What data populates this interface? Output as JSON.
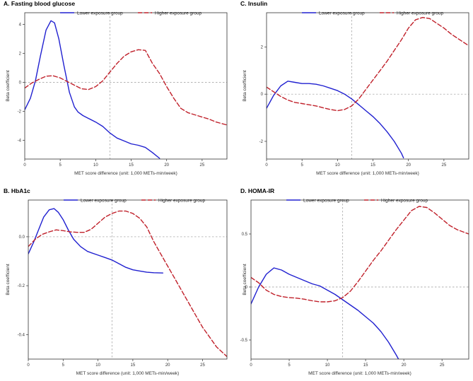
{
  "figure": {
    "background": "#ffffff"
  },
  "colors": {
    "lower": "#2020d0",
    "higher": "#c0202a",
    "reference": "#999999",
    "frame": "#333333"
  },
  "chart_data": [
    {
      "type": "line",
      "title": "A. Fasting blood glucose",
      "xlabel": "MET score difference (unit: 1,000 METs-min/week)",
      "ylabel": "Beta coefficient",
      "xlim": [
        0,
        28.5
      ],
      "ylim": [
        -5.3,
        4.8
      ],
      "xticks": [
        0,
        5,
        10,
        15,
        20,
        25
      ],
      "yticks": [
        -4,
        -2,
        0,
        2,
        4
      ],
      "ref_x": 12,
      "ref_y": 0,
      "legend": "top",
      "series": [
        {
          "name": "Lower exposure group",
          "style": "solid",
          "x": [
            0,
            0.8,
            1.5,
            2.2,
            3,
            3.7,
            4.2,
            4.8,
            5.5,
            6.3,
            7,
            7.5,
            8.2,
            9,
            10,
            11,
            12,
            13,
            14,
            15,
            16,
            17,
            18,
            19
          ],
          "y": [
            -1.9,
            -1.1,
            0.1,
            1.8,
            3.6,
            4.25,
            4.1,
            3.0,
            1.2,
            -0.7,
            -1.7,
            -2.05,
            -2.3,
            -2.5,
            -2.75,
            -3.05,
            -3.5,
            -3.85,
            -4.05,
            -4.25,
            -4.35,
            -4.5,
            -4.85,
            -5.25
          ]
        },
        {
          "name": "Higher exposure group",
          "style": "dashed",
          "x": [
            0,
            1,
            2,
            3,
            4,
            5,
            6,
            7,
            8,
            9,
            10,
            11,
            12,
            13,
            14,
            15,
            16,
            17,
            18,
            19,
            20,
            21,
            22,
            23,
            24,
            25,
            26,
            27,
            28.5
          ],
          "y": [
            -0.4,
            -0.05,
            0.2,
            0.42,
            0.45,
            0.3,
            0.05,
            -0.2,
            -0.45,
            -0.5,
            -0.3,
            0.1,
            0.7,
            1.3,
            1.8,
            2.1,
            2.25,
            2.2,
            1.3,
            0.6,
            -0.3,
            -1.1,
            -1.8,
            -2.1,
            -2.25,
            -2.4,
            -2.55,
            -2.75,
            -2.95
          ]
        }
      ]
    },
    {
      "type": "line",
      "title": "C. Insulin",
      "xlabel": "MET score difference (unit: 1,000 METs-min/week)",
      "ylabel": "Beta coefficient",
      "xlim": [
        0,
        28.5
      ],
      "ylim": [
        -2.75,
        3.45
      ],
      "xticks": [
        0,
        5,
        10,
        15,
        20,
        25
      ],
      "yticks": [
        -2,
        0,
        2
      ],
      "ref_x": 12,
      "ref_y": 0,
      "legend": "top",
      "series": [
        {
          "name": "Lower exposure group",
          "style": "solid",
          "x": [
            0,
            1,
            2,
            3,
            4,
            5,
            6,
            7,
            8,
            9,
            10,
            11,
            12,
            13,
            14,
            15,
            16,
            17,
            18,
            19,
            19.3
          ],
          "y": [
            -0.6,
            -0.05,
            0.35,
            0.55,
            0.5,
            0.45,
            0.45,
            0.42,
            0.35,
            0.25,
            0.15,
            0.0,
            -0.2,
            -0.45,
            -0.7,
            -0.95,
            -1.25,
            -1.6,
            -2.0,
            -2.5,
            -2.7
          ]
        },
        {
          "name": "Higher exposure group",
          "style": "dashed",
          "x": [
            0,
            1,
            2,
            3,
            4,
            5,
            6,
            7,
            8,
            9,
            10,
            11,
            12,
            13,
            14,
            15,
            16,
            17,
            18,
            19,
            20,
            21,
            22,
            23,
            24,
            25,
            26,
            27,
            28.5
          ],
          "y": [
            0.3,
            0.1,
            -0.1,
            -0.25,
            -0.35,
            -0.4,
            -0.45,
            -0.5,
            -0.58,
            -0.65,
            -0.7,
            -0.65,
            -0.5,
            -0.2,
            0.2,
            0.6,
            1.0,
            1.4,
            1.85,
            2.3,
            2.8,
            3.15,
            3.25,
            3.2,
            3.0,
            2.8,
            2.55,
            2.35,
            2.05
          ]
        }
      ]
    },
    {
      "type": "line",
      "title": "B. HbA1c",
      "xlabel": "MET score difference (unit: 1,000 METs-min/week)",
      "ylabel": "Beta coefficient",
      "xlim": [
        0,
        28.5
      ],
      "ylim": [
        -0.5,
        0.15
      ],
      "xticks": [
        0,
        5,
        10,
        15,
        20,
        25
      ],
      "yticks": [
        -0.4,
        -0.2,
        0.0
      ],
      "ytick_labels": [
        "-0.4",
        "-0.2",
        "0.0"
      ],
      "ref_x": 12,
      "ref_y": 0,
      "legend": "top",
      "series": [
        {
          "name": "Lower exposure group",
          "style": "solid",
          "x": [
            0,
            0.8,
            1.5,
            2.2,
            3,
            3.7,
            4.3,
            5,
            5.7,
            6.5,
            7.5,
            8.5,
            10,
            11,
            12,
            13,
            14,
            15,
            16,
            17,
            18,
            19.3
          ],
          "y": [
            -0.07,
            -0.02,
            0.03,
            0.08,
            0.11,
            0.115,
            0.1,
            0.07,
            0.03,
            -0.01,
            -0.04,
            -0.06,
            -0.075,
            -0.085,
            -0.095,
            -0.11,
            -0.125,
            -0.135,
            -0.14,
            -0.145,
            -0.147,
            -0.148
          ]
        },
        {
          "name": "Higher exposure group",
          "style": "dashed",
          "x": [
            0,
            1,
            2,
            3,
            4,
            5,
            6,
            7,
            8,
            9,
            10,
            11,
            12,
            13,
            14,
            15,
            16,
            17,
            18,
            19,
            20,
            21,
            22,
            23,
            24,
            25,
            26,
            27,
            28.5
          ],
          "y": [
            -0.04,
            -0.01,
            0.01,
            0.02,
            0.028,
            0.025,
            0.02,
            0.018,
            0.018,
            0.03,
            0.055,
            0.08,
            0.095,
            0.105,
            0.105,
            0.095,
            0.075,
            0.04,
            -0.02,
            -0.07,
            -0.12,
            -0.17,
            -0.22,
            -0.27,
            -0.32,
            -0.37,
            -0.41,
            -0.45,
            -0.49
          ]
        }
      ]
    },
    {
      "type": "line",
      "title": "D. HOMA-IR",
      "xlabel": "MET score difference (unit: 1,000 METs-min/week)",
      "ylabel": "Beta coefficient",
      "xlim": [
        0,
        28.5
      ],
      "ylim": [
        -0.68,
        0.82
      ],
      "xticks": [
        0,
        5,
        10,
        15,
        20,
        25
      ],
      "yticks": [
        -0.5,
        0.0,
        0.5
      ],
      "ytick_labels": [
        "-0.5",
        "0",
        "0.5"
      ],
      "ref_x": 12,
      "ref_y": 0,
      "legend": "top",
      "series": [
        {
          "name": "Lower exposure group",
          "style": "solid",
          "x": [
            0,
            1,
            2,
            3,
            4,
            5,
            6,
            7,
            8,
            9,
            10,
            11,
            12,
            13,
            14,
            15,
            16,
            17,
            18,
            19,
            19.3
          ],
          "y": [
            -0.16,
            0.0,
            0.12,
            0.18,
            0.16,
            0.12,
            0.09,
            0.06,
            0.03,
            0.01,
            -0.03,
            -0.07,
            -0.12,
            -0.17,
            -0.22,
            -0.28,
            -0.34,
            -0.42,
            -0.52,
            -0.64,
            -0.68
          ]
        },
        {
          "name": "Higher exposure group",
          "style": "dashed",
          "x": [
            0,
            1,
            2,
            3,
            4,
            5,
            6,
            7,
            8,
            9,
            10,
            11,
            12,
            13,
            14,
            15,
            16,
            17,
            18,
            19,
            20,
            21,
            22,
            23,
            24,
            25,
            26,
            27,
            28.5
          ],
          "y": [
            0.09,
            0.04,
            -0.03,
            -0.07,
            -0.09,
            -0.1,
            -0.105,
            -0.115,
            -0.13,
            -0.14,
            -0.14,
            -0.13,
            -0.1,
            -0.04,
            0.05,
            0.15,
            0.25,
            0.34,
            0.44,
            0.54,
            0.63,
            0.72,
            0.76,
            0.75,
            0.7,
            0.64,
            0.58,
            0.54,
            0.5
          ]
        }
      ]
    }
  ]
}
